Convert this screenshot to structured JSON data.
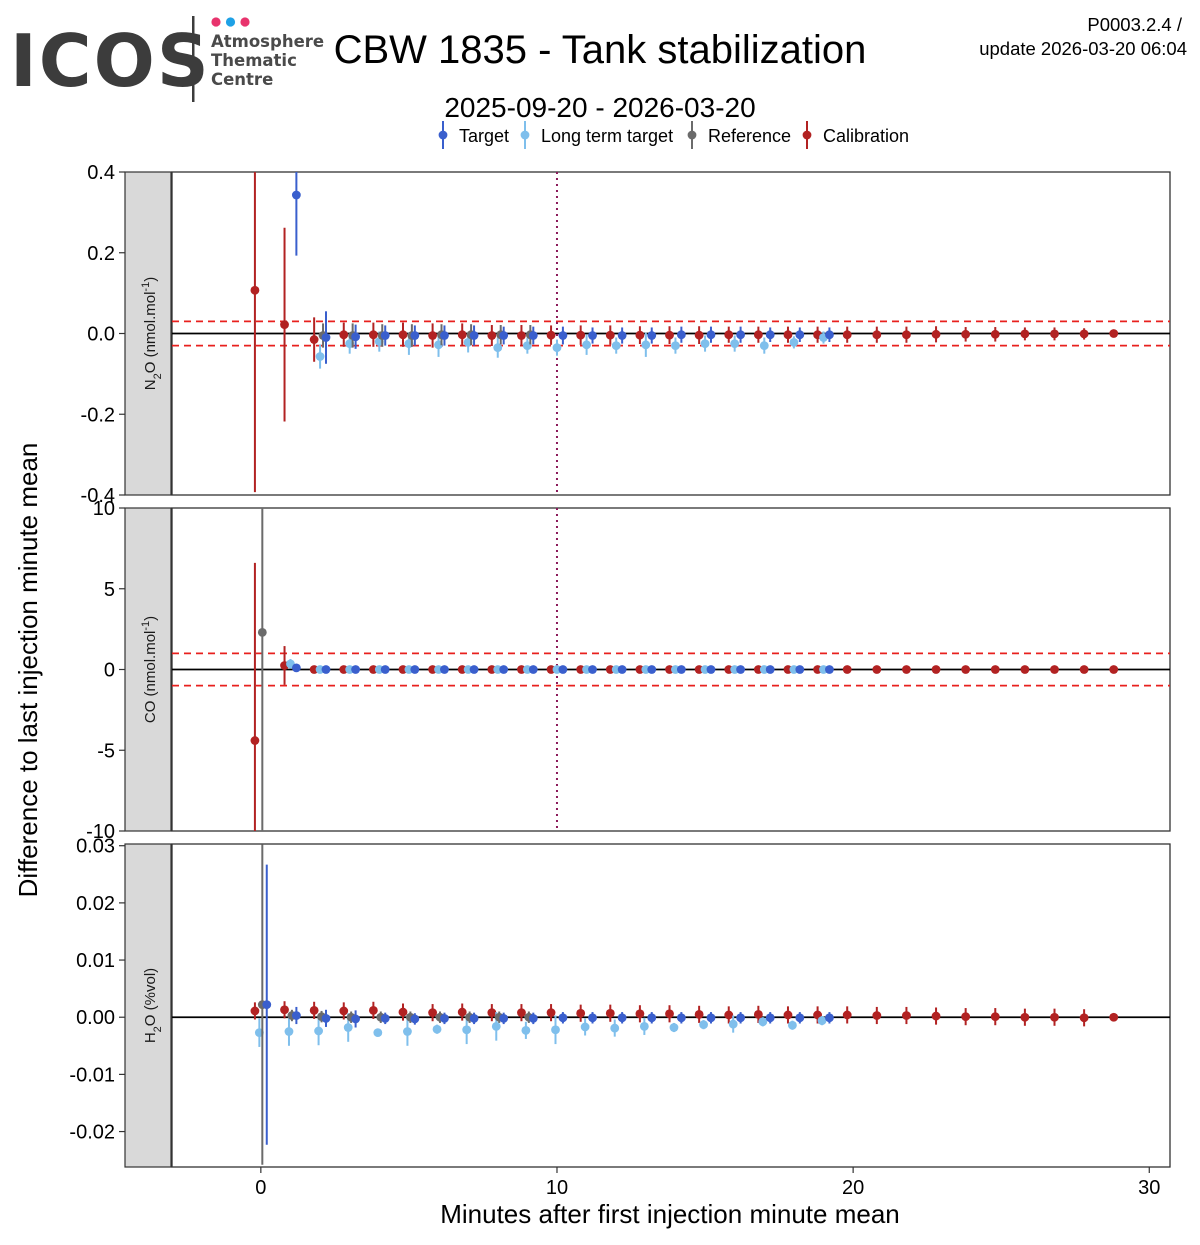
{
  "header": {
    "logo_text": "ICOS",
    "logo_sub": [
      "Atmosphere",
      "Thematic",
      "Centre"
    ],
    "logo_dot_colors": [
      "#e8336d",
      "#1ea1e6",
      "#e8336d"
    ],
    "title": "CBW 1835 - Tank stabilization",
    "subtitle": "2025-09-20 - 2026-03-20",
    "version": "P0003.2.4 /",
    "update": "update  2026-03-20 06:04"
  },
  "chart_data": {
    "type": "scatter",
    "xlabel": "Minutes after first injection minute mean",
    "ylabel": "Difference to last injection minute mean",
    "xlim": [
      -3,
      30.7
    ],
    "xticks": [
      0,
      10,
      20,
      30
    ],
    "vline_x": 10,
    "legend": {
      "placement": "top",
      "entries": [
        {
          "name": "Target",
          "color": "#3a5fcd"
        },
        {
          "name": "Long term target",
          "color": "#7fbfec"
        },
        {
          "name": "Reference",
          "color": "#6b6b6b"
        },
        {
          "name": "Calibration",
          "color": "#b22222"
        }
      ]
    },
    "panels": [
      {
        "gas": "N2O",
        "strip_label": [
          "N",
          "2",
          "O (nmol.mol",
          "-1",
          ")"
        ],
        "ylim": [
          -0.4,
          0.4
        ],
        "yticks": [
          -0.4,
          -0.2,
          0.0,
          0.2
        ],
        "ytick_labels": [
          "-0.4",
          "-0.2",
          "0.0",
          "0.2"
        ],
        "top_label": "0.4",
        "threshold": 0.03,
        "series": [
          {
            "name": "Calibration",
            "x": [
              -0.2,
              0.8,
              1.8,
              2.8,
              3.8,
              4.8,
              5.8,
              6.8,
              7.8,
              8.8,
              9.8,
              10.8,
              11.8,
              12.8,
              13.8,
              14.8,
              15.8,
              16.8,
              17.8,
              18.8,
              19.8,
              20.8,
              21.8,
              22.8,
              23.8,
              24.8,
              25.8,
              26.8,
              27.8,
              28.8
            ],
            "y": [
              0.107,
              0.022,
              -0.015,
              -0.003,
              -0.003,
              -0.003,
              -0.005,
              -0.003,
              -0.005,
              -0.005,
              -0.004,
              -0.004,
              -0.004,
              -0.004,
              -0.004,
              -0.004,
              -0.003,
              -0.003,
              -0.003,
              -0.003,
              -0.003,
              -0.003,
              -0.003,
              -0.002,
              -0.002,
              -0.002,
              -0.001,
              -0.001,
              -0.001,
              0.0
            ],
            "err": [
              0.5,
              0.24,
              0.055,
              0.03,
              0.03,
              0.03,
              0.03,
              0.028,
              0.026,
              0.026,
              0.024,
              0.024,
              0.024,
              0.022,
              0.022,
              0.022,
              0.02,
              0.02,
              0.02,
              0.02,
              0.02,
              0.02,
              0.02,
              0.02,
              0.018,
              0.018,
              0.016,
              0.016,
              0.014,
              0.0
            ]
          },
          {
            "name": "Long term target",
            "x": [
              2.0,
              3.0,
              4.0,
              5.0,
              6.0,
              7.0,
              8.0,
              9.0,
              10.0,
              11.0,
              12.0,
              13.0,
              14.0,
              15.0,
              16.0,
              17.0,
              18.0,
              19.0
            ],
            "y": [
              -0.057,
              -0.025,
              -0.02,
              -0.025,
              -0.028,
              -0.022,
              -0.035,
              -0.03,
              -0.035,
              -0.028,
              -0.03,
              -0.028,
              -0.03,
              -0.025,
              -0.025,
              -0.03,
              -0.022,
              -0.01
            ],
            "err": [
              0.03,
              0.025,
              0.025,
              0.028,
              0.03,
              0.025,
              0.025,
              0.02,
              0.02,
              0.025,
              0.02,
              0.03,
              0.02,
              0.02,
              0.02,
              0.02,
              0.015,
              0.015
            ]
          },
          {
            "name": "Reference",
            "x": [
              2.1,
              3.1,
              4.1,
              5.1,
              6.1,
              7.1,
              8.1,
              9.1
            ],
            "y": [
              -0.005,
              -0.005,
              -0.005,
              -0.005,
              -0.003,
              -0.003,
              -0.003,
              -0.003
            ],
            "err": [
              0.03,
              0.03,
              0.028,
              0.028,
              0.026,
              0.026,
              0.024,
              0.024
            ]
          },
          {
            "name": "Target",
            "x": [
              1.2,
              2.2,
              3.2,
              4.2,
              5.2,
              6.2,
              7.2,
              8.2,
              9.2,
              10.2,
              11.2,
              12.2,
              13.2,
              14.2,
              15.2,
              16.2,
              17.2,
              18.2,
              19.2
            ],
            "y": [
              0.343,
              -0.01,
              -0.008,
              -0.005,
              -0.005,
              -0.005,
              -0.005,
              -0.005,
              -0.005,
              -0.005,
              -0.005,
              -0.005,
              -0.005,
              -0.003,
              -0.003,
              -0.003,
              -0.003,
              -0.003,
              -0.003
            ],
            "err": [
              0.15,
              0.065,
              0.03,
              0.025,
              0.025,
              0.025,
              0.025,
              0.022,
              0.022,
              0.022,
              0.02,
              0.02,
              0.02,
              0.02,
              0.02,
              0.02,
              0.018,
              0.018,
              0.018
            ]
          }
        ]
      },
      {
        "gas": "CO",
        "strip_label": [
          "CO (nmol.mol",
          "-1",
          ")"
        ],
        "ylim": [
          -10,
          10
        ],
        "yticks": [
          -10,
          -5,
          0,
          5
        ],
        "ytick_labels": [
          "-10",
          "-5",
          "0",
          "5"
        ],
        "top_label": "10",
        "threshold": 1,
        "series": [
          {
            "name": "Calibration",
            "x": [
              -0.2,
              0.8,
              1.8,
              2.8,
              3.8,
              4.8,
              5.8,
              6.8,
              7.8,
              8.8,
              9.8,
              10.8,
              11.8,
              12.8,
              13.8,
              14.8,
              15.8,
              16.8,
              17.8,
              18.8,
              19.8,
              20.8,
              21.8,
              22.8,
              23.8,
              24.8,
              25.8,
              26.8,
              27.8,
              28.8
            ],
            "y": [
              -4.4,
              0.25,
              0.0,
              0.0,
              0.0,
              0.0,
              0.0,
              0.0,
              0.0,
              0.0,
              0.0,
              0.0,
              0.0,
              0.0,
              0.0,
              0.0,
              0.0,
              0.0,
              0.0,
              0.0,
              0.0,
              0.0,
              0.0,
              0.0,
              0.0,
              0.0,
              0.0,
              0.0,
              0.0,
              0.0
            ],
            "err": [
              11,
              1.2,
              0.1,
              0.1,
              0.1,
              0.1,
              0.1,
              0.1,
              0.1,
              0.1,
              0.1,
              0.1,
              0.1,
              0.1,
              0.1,
              0.1,
              0.1,
              0.1,
              0.1,
              0.1,
              0.1,
              0.1,
              0.1,
              0.1,
              0.1,
              0.1,
              0.1,
              0.1,
              0.1,
              0.0
            ]
          },
          {
            "name": "Long term target",
            "x": [
              1.0,
              2.0,
              3.0,
              4.0,
              5.0,
              6.0,
              7.0,
              8.0,
              9.0,
              10.0,
              11.0,
              12.0,
              13.0,
              14.0,
              15.0,
              16.0,
              17.0,
              18.0,
              19.0
            ],
            "y": [
              0.35,
              0.0,
              0.0,
              0.0,
              0.0,
              0.0,
              0.0,
              0.0,
              0.0,
              0.0,
              0.0,
              0.0,
              0.0,
              0.0,
              0.0,
              0.0,
              0.0,
              0.0,
              0.0
            ],
            "err": [
              0.3,
              0.1,
              0.1,
              0.1,
              0.1,
              0.1,
              0.1,
              0.1,
              0.1,
              0.1,
              0.1,
              0.1,
              0.1,
              0.1,
              0.1,
              0.1,
              0.1,
              0.1,
              0.1
            ]
          },
          {
            "name": "Reference",
            "x": [
              0.05
            ],
            "y": [
              2.3
            ],
            "err": [
              13
            ]
          },
          {
            "name": "Target",
            "x": [
              1.2,
              2.2,
              3.2,
              4.2,
              5.2,
              6.2,
              7.2,
              8.2,
              9.2,
              10.2,
              11.2,
              12.2,
              13.2,
              14.2,
              15.2,
              16.2,
              17.2,
              18.2,
              19.2
            ],
            "y": [
              0.1,
              0.0,
              0.0,
              0.0,
              0.0,
              0.0,
              0.0,
              0.0,
              0.0,
              0.0,
              0.0,
              0.0,
              0.0,
              0.0,
              0.0,
              0.0,
              0.0,
              0.0,
              0.0
            ],
            "err": [
              0.2,
              0.1,
              0.1,
              0.1,
              0.1,
              0.1,
              0.1,
              0.1,
              0.1,
              0.1,
              0.1,
              0.1,
              0.1,
              0.1,
              0.1,
              0.1,
              0.1,
              0.1,
              0.1
            ]
          }
        ]
      },
      {
        "gas": "H2O",
        "strip_label": [
          "H",
          "2",
          "O (%vol)"
        ],
        "ylim": [
          -0.0262,
          0.0303
        ],
        "yticks": [
          -0.02,
          -0.01,
          0.0,
          0.01,
          0.02,
          0.03
        ],
        "ytick_labels": [
          "-0.02",
          "-0.01",
          "0.00",
          "0.01",
          "0.02",
          "0.03"
        ],
        "top_label": "",
        "threshold": null,
        "series": [
          {
            "name": "Calibration",
            "x": [
              -0.2,
              0.8,
              1.8,
              2.8,
              3.8,
              4.8,
              5.8,
              6.8,
              7.8,
              8.8,
              9.8,
              10.8,
              11.8,
              12.8,
              13.8,
              14.8,
              15.8,
              16.8,
              17.8,
              18.8,
              19.8,
              20.8,
              21.8,
              22.8,
              23.8,
              24.8,
              25.8,
              26.8,
              27.8,
              28.8
            ],
            "y": [
              0.0011,
              0.0013,
              0.0012,
              0.0011,
              0.0012,
              0.0009,
              0.0008,
              0.0009,
              0.0008,
              0.0008,
              0.0008,
              0.0007,
              0.0007,
              0.0006,
              0.0006,
              0.0005,
              0.0004,
              0.0005,
              0.0004,
              0.0004,
              0.0004,
              0.0003,
              0.0003,
              0.0002,
              0.0001,
              0.0001,
              0.0,
              0.0,
              -0.0001,
              0.0
            ],
            "err": [
              0.0015,
              0.0015,
              0.0015,
              0.0015,
              0.0015,
              0.0015,
              0.0015,
              0.0015,
              0.0015,
              0.0015,
              0.0015,
              0.0015,
              0.0015,
              0.0015,
              0.0015,
              0.0015,
              0.0015,
              0.0015,
              0.0015,
              0.0015,
              0.0015,
              0.0015,
              0.0015,
              0.0015,
              0.0015,
              0.0015,
              0.0015,
              0.0015,
              0.0015,
              0.0
            ]
          },
          {
            "name": "Long term target",
            "x": [
              -0.05,
              0.95,
              1.95,
              2.95,
              3.95,
              4.95,
              5.95,
              6.95,
              7.95,
              8.95,
              9.95,
              10.95,
              11.95,
              12.95,
              13.95,
              14.95,
              15.95,
              16.95,
              17.95,
              18.95
            ],
            "y": [
              -0.0027,
              -0.0025,
              -0.0024,
              -0.0018,
              -0.0027,
              -0.0025,
              -0.0021,
              -0.0022,
              -0.0016,
              -0.0023,
              -0.0022,
              -0.0017,
              -0.0019,
              -0.0016,
              -0.0018,
              -0.0013,
              -0.0012,
              -0.0008,
              -0.0014,
              -0.0006
            ],
            "err": [
              0.0025,
              0.0025,
              0.0025,
              0.0025,
              0.0006,
              0.0025,
              0.0008,
              0.0025,
              0.0025,
              0.0015,
              0.0025,
              0.0015,
              0.0015,
              0.0015,
              0.0008,
              0.0008,
              0.0015,
              0.0008,
              0.0008,
              0.0008
            ]
          },
          {
            "name": "Reference",
            "x": [
              0.05,
              1.05,
              2.05,
              3.05,
              4.05,
              5.05,
              6.05,
              7.05,
              8.05,
              9.05
            ],
            "y": [
              0.0022,
              0.0003,
              0.0001,
              0.0,
              0.0,
              0.0,
              0.0,
              0.0,
              0.0,
              0.0
            ],
            "err": [
              0.028,
              0.001,
              0.001,
              0.001,
              0.001,
              0.001,
              0.001,
              0.001,
              0.001,
              0.001
            ]
          },
          {
            "name": "Target",
            "x": [
              0.2,
              1.2,
              2.2,
              3.2,
              4.2,
              5.2,
              6.2,
              7.2,
              8.2,
              9.2,
              10.2,
              11.2,
              12.2,
              13.2,
              14.2,
              15.2,
              16.2,
              17.2,
              18.2,
              19.2
            ],
            "y": [
              0.0022,
              0.0003,
              -0.0002,
              -0.0003,
              -0.0002,
              -0.0003,
              -0.0002,
              -0.0002,
              -0.0002,
              -0.0002,
              -0.0001,
              -0.0001,
              -0.0001,
              -0.0001,
              -0.0001,
              -0.0001,
              -0.0001,
              -0.0001,
              -0.0001,
              -0.0001
            ],
            "err": [
              0.0245,
              0.0015,
              0.0015,
              0.0015,
              0.001,
              0.001,
              0.001,
              0.001,
              0.001,
              0.001,
              0.001,
              0.001,
              0.001,
              0.001,
              0.001,
              0.001,
              0.001,
              0.001,
              0.001,
              0.001
            ]
          }
        ]
      }
    ]
  }
}
